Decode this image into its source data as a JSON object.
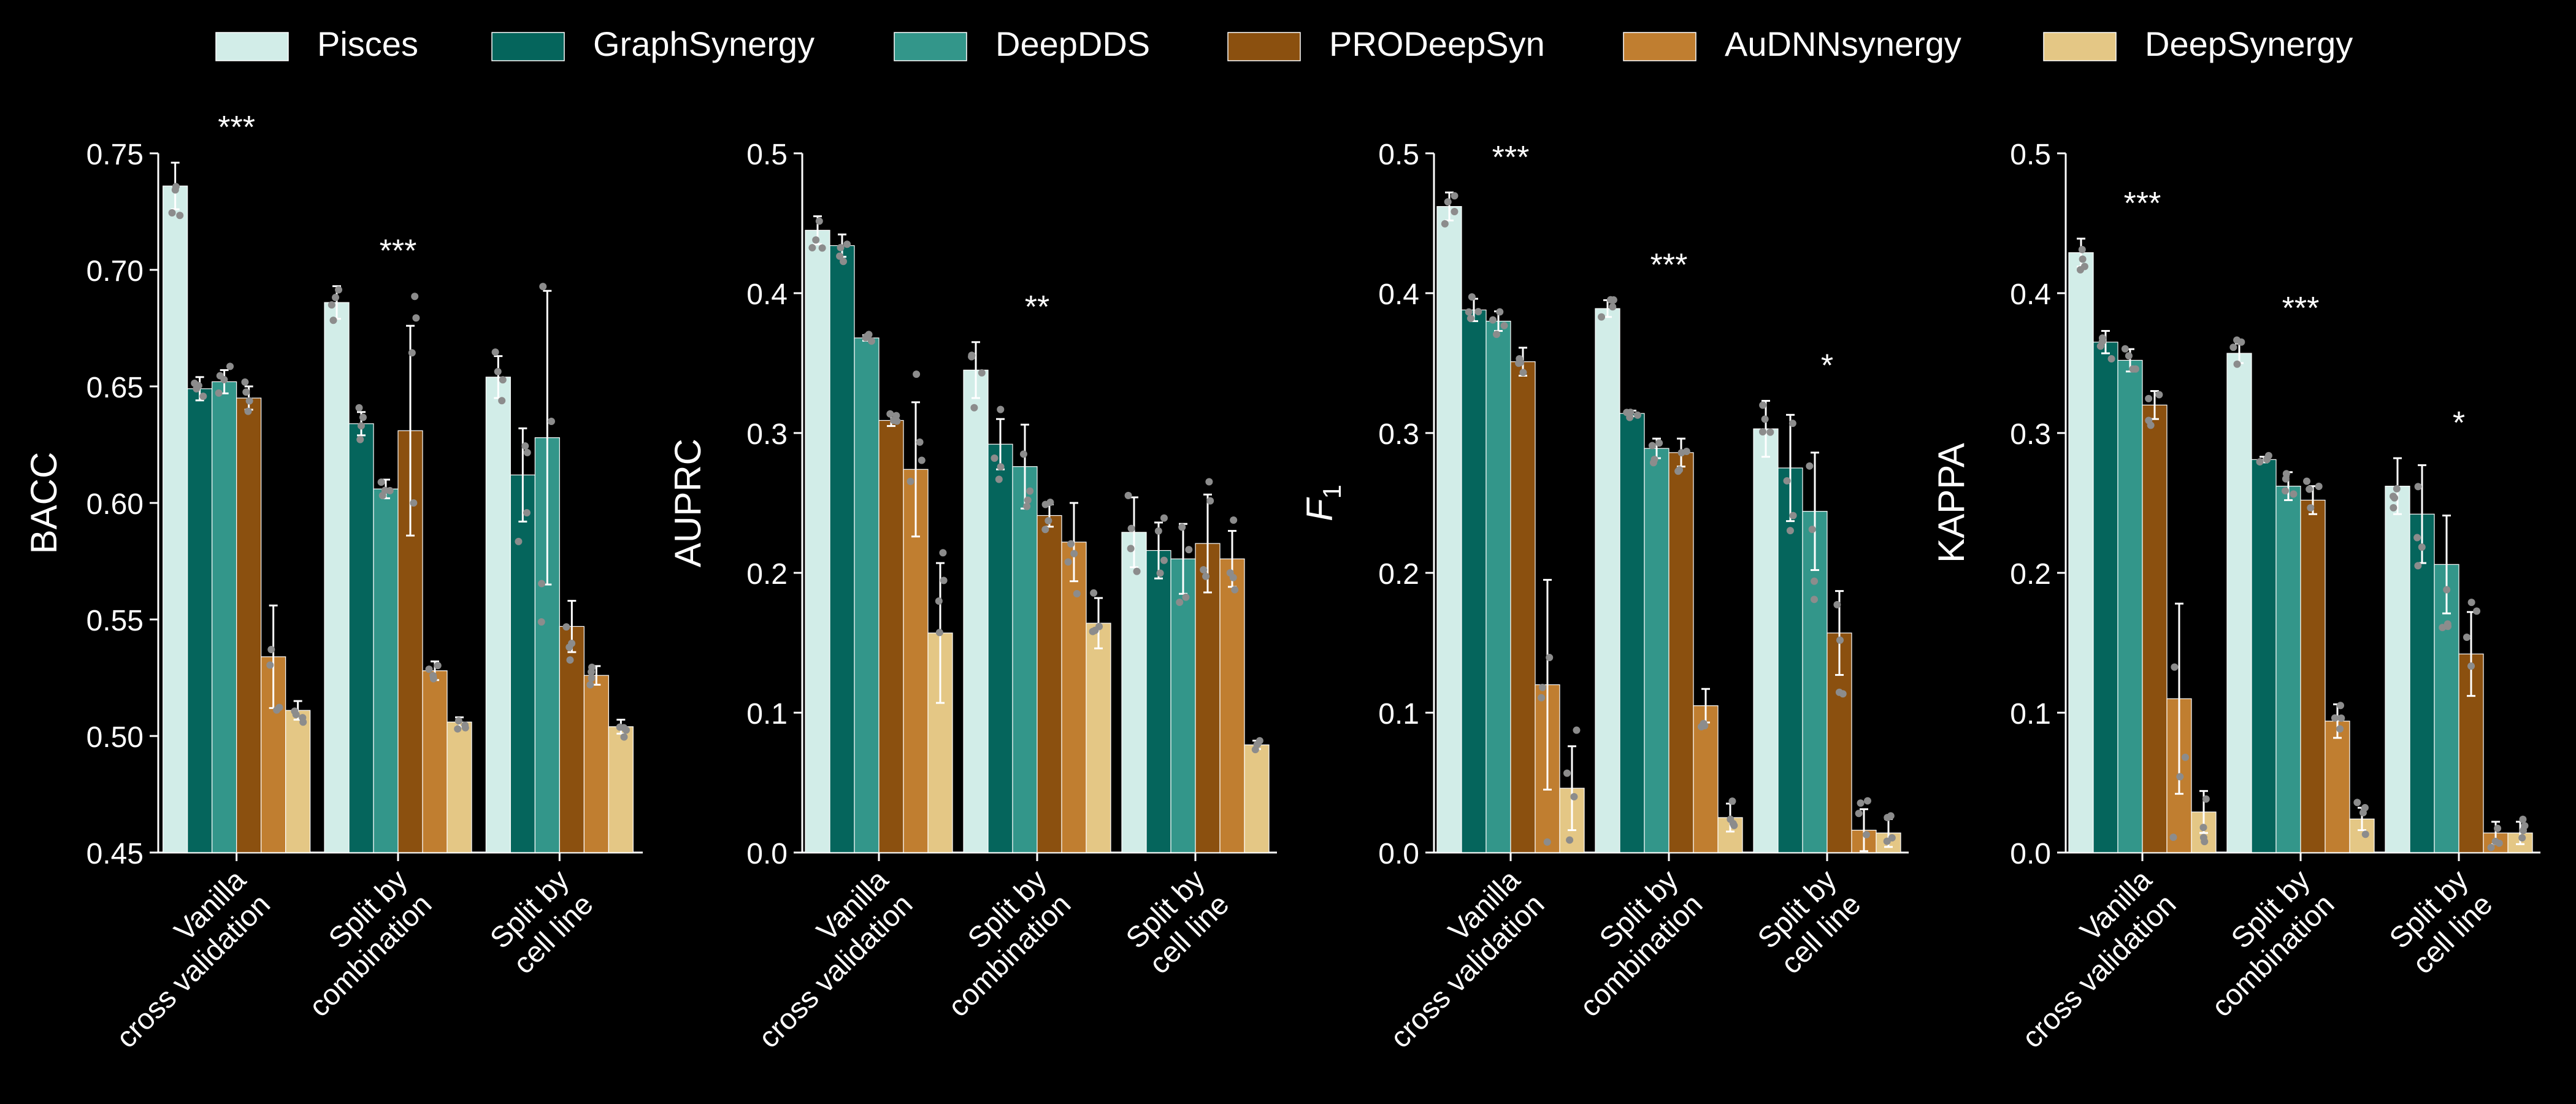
{
  "legend": {
    "placement": "top",
    "entries": [
      "Pisces",
      "GraphSynergy",
      "DeepDDS",
      "PRODeepSyn",
      "AuDNNsynergy",
      "DeepSynergy"
    ]
  },
  "colors": {
    "background": "#000000",
    "foreground": "#ffffff",
    "points": "#8c8c8c",
    "series": [
      "#d2ede8",
      "#05655c",
      "#33968a",
      "#8b500f",
      "#c07e30",
      "#e4c785"
    ]
  },
  "chart_data": [
    {
      "type": "bar",
      "ylabel": "BACC",
      "ylim": [
        0.45,
        0.75
      ],
      "yticks": [
        "0.45",
        "0.50",
        "0.55",
        "0.60",
        "0.65",
        "0.70",
        "0.75"
      ],
      "categories": [
        [
          "Vanilla",
          "cross validation"
        ],
        [
          "Split by",
          "combination"
        ],
        [
          "Split by",
          "cell line"
        ]
      ],
      "significance": [
        "***",
        "***",
        ""
      ],
      "series": [
        {
          "name": "Pisces",
          "values": [
            0.736,
            0.686,
            0.654
          ],
          "errors": [
            0.01,
            0.007,
            0.009
          ]
        },
        {
          "name": "GraphSynergy",
          "values": [
            0.649,
            0.634,
            0.612
          ],
          "errors": [
            0.005,
            0.005,
            0.02
          ]
        },
        {
          "name": "DeepDDS",
          "values": [
            0.652,
            0.606,
            0.628
          ],
          "errors": [
            0.005,
            0.004,
            0.063
          ]
        },
        {
          "name": "PRODeepSyn",
          "values": [
            0.645,
            0.631,
            0.547
          ],
          "errors": [
            0.005,
            0.045,
            0.011
          ]
        },
        {
          "name": "AuDNNsynergy",
          "values": [
            0.534,
            0.528,
            0.526
          ],
          "errors": [
            0.022,
            0.004,
            0.004
          ]
        },
        {
          "name": "DeepSynergy",
          "values": [
            0.511,
            0.506,
            0.504
          ],
          "errors": [
            0.004,
            0.002,
            0.003
          ]
        }
      ]
    },
    {
      "type": "bar",
      "ylabel": "AUPRC",
      "ylim": [
        0.0,
        0.5
      ],
      "yticks": [
        "0.0",
        "0.1",
        "0.2",
        "0.3",
        "0.4",
        "0.5"
      ],
      "categories": [
        [
          "Vanilla",
          "cross validation"
        ],
        [
          "Split by",
          "combination"
        ],
        [
          "Split by",
          "cell line"
        ]
      ],
      "significance": [
        "",
        "**",
        ""
      ],
      "series": [
        {
          "name": "Pisces",
          "values": [
            0.445,
            0.345,
            0.229
          ],
          "errors": [
            0.01,
            0.02,
            0.025
          ]
        },
        {
          "name": "GraphSynergy",
          "values": [
            0.434,
            0.292,
            0.216
          ],
          "errors": [
            0.008,
            0.018,
            0.02
          ]
        },
        {
          "name": "DeepDDS",
          "values": [
            0.368,
            0.276,
            0.21
          ],
          "errors": [
            0.002,
            0.03,
            0.025
          ]
        },
        {
          "name": "PRODeepSyn",
          "values": [
            0.309,
            0.241,
            0.221
          ],
          "errors": [
            0.004,
            0.008,
            0.035
          ]
        },
        {
          "name": "AuDNNsynergy",
          "values": [
            0.274,
            0.222,
            0.21
          ],
          "errors": [
            0.048,
            0.028,
            0.02
          ]
        },
        {
          "name": "DeepSynergy",
          "values": [
            0.157,
            0.164,
            0.077
          ],
          "errors": [
            0.05,
            0.018,
            0.003
          ]
        }
      ]
    },
    {
      "type": "bar",
      "ylabel": "F",
      "ylabel_sub": "1",
      "ylim": [
        0.0,
        0.5
      ],
      "yticks": [
        "0.0",
        "0.1",
        "0.2",
        "0.3",
        "0.4",
        "0.5"
      ],
      "categories": [
        [
          "Vanilla",
          "cross validation"
        ],
        [
          "Split by",
          "combination"
        ],
        [
          "Split by",
          "cell line"
        ]
      ],
      "significance": [
        "***",
        "***",
        "*"
      ],
      "series": [
        {
          "name": "Pisces",
          "values": [
            0.462,
            0.389,
            0.303
          ],
          "errors": [
            0.01,
            0.006,
            0.02
          ]
        },
        {
          "name": "GraphSynergy",
          "values": [
            0.388,
            0.314,
            0.275
          ],
          "errors": [
            0.008,
            0.002,
            0.038
          ]
        },
        {
          "name": "DeepDDS",
          "values": [
            0.38,
            0.289,
            0.244
          ],
          "errors": [
            0.007,
            0.007,
            0.042
          ]
        },
        {
          "name": "PRODeepSyn",
          "values": [
            0.351,
            0.286,
            0.157
          ],
          "errors": [
            0.01,
            0.01,
            0.03
          ]
        },
        {
          "name": "AuDNNsynergy",
          "values": [
            0.12,
            0.105,
            0.016
          ],
          "errors": [
            0.075,
            0.012,
            0.015
          ]
        },
        {
          "name": "DeepSynergy",
          "values": [
            0.046,
            0.025,
            0.014
          ],
          "errors": [
            0.03,
            0.01,
            0.01
          ]
        }
      ]
    },
    {
      "type": "bar",
      "ylabel": "KAPPA",
      "ylim": [
        0.0,
        0.5
      ],
      "yticks": [
        "0.0",
        "0.1",
        "0.2",
        "0.3",
        "0.4",
        "0.5"
      ],
      "categories": [
        [
          "Vanilla",
          "cross validation"
        ],
        [
          "Split by",
          "combination"
        ],
        [
          "Split by",
          "cell line"
        ]
      ],
      "significance": [
        "***",
        "***",
        "*"
      ],
      "series": [
        {
          "name": "Pisces",
          "values": [
            0.429,
            0.357,
            0.262
          ],
          "errors": [
            0.01,
            0.007,
            0.02
          ]
        },
        {
          "name": "GraphSynergy",
          "values": [
            0.365,
            0.281,
            0.242
          ],
          "errors": [
            0.008,
            0.002,
            0.035
          ]
        },
        {
          "name": "DeepDDS",
          "values": [
            0.352,
            0.262,
            0.206
          ],
          "errors": [
            0.008,
            0.01,
            0.035
          ]
        },
        {
          "name": "PRODeepSyn",
          "values": [
            0.32,
            0.252,
            0.142
          ],
          "errors": [
            0.01,
            0.01,
            0.03
          ]
        },
        {
          "name": "AuDNNsynergy",
          "values": [
            0.11,
            0.094,
            0.014
          ],
          "errors": [
            0.068,
            0.012,
            0.008
          ]
        },
        {
          "name": "DeepSynergy",
          "values": [
            0.029,
            0.024,
            0.014
          ],
          "errors": [
            0.015,
            0.008,
            0.008
          ]
        }
      ]
    }
  ]
}
